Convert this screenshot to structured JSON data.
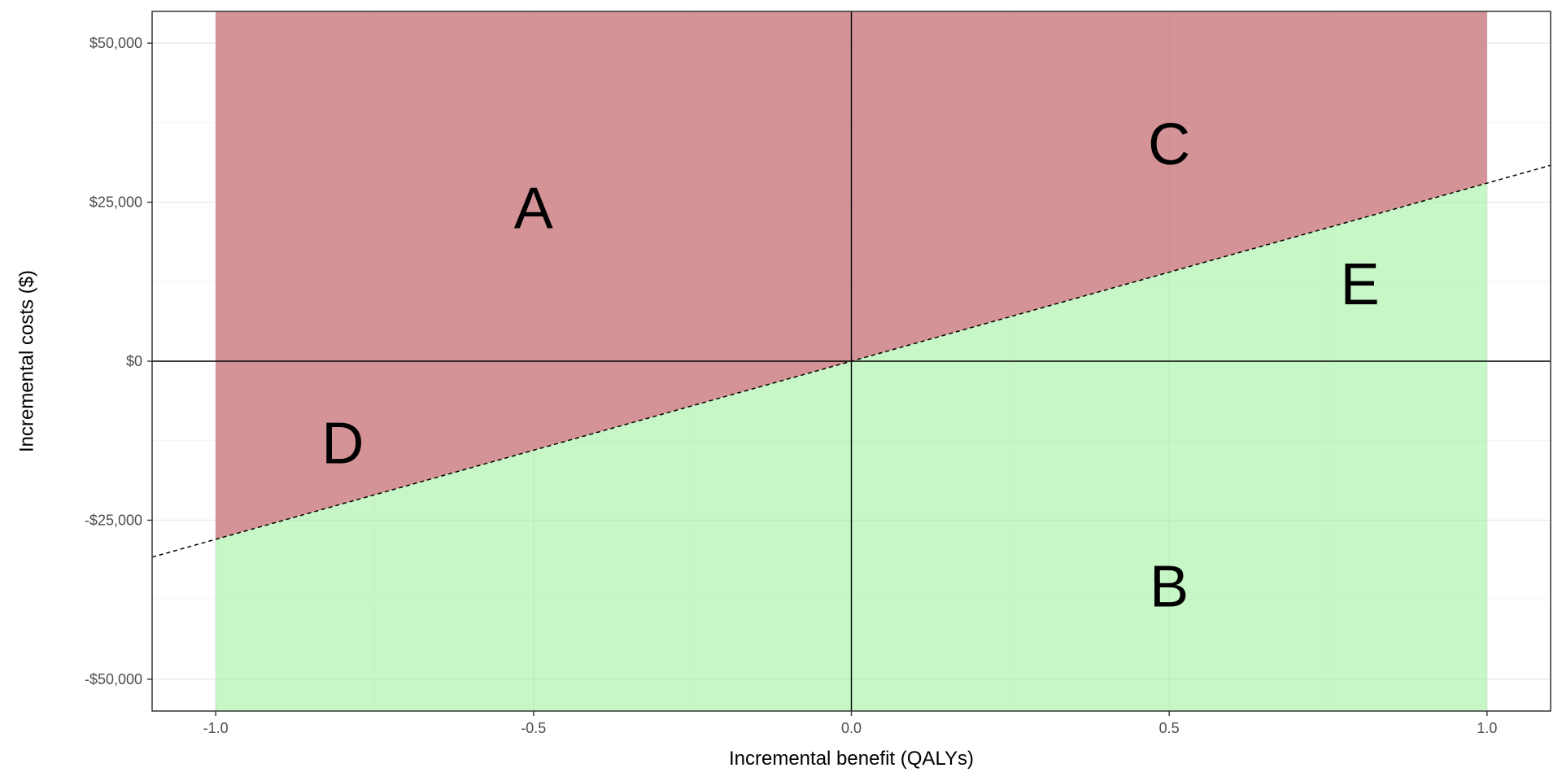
{
  "chart_data": {
    "type": "area",
    "title": "",
    "xlabel": "Incremental benefit (QALYs)",
    "ylabel": "Incremental costs ($)",
    "xlim": [
      -1.1,
      1.1
    ],
    "ylim": [
      -55000,
      55000
    ],
    "x_ticks": [
      -1.0,
      -0.5,
      0.0,
      0.5,
      1.0
    ],
    "x_tick_labels": [
      "-1.0",
      "-0.5",
      "0.0",
      "0.5",
      "1.0"
    ],
    "y_ticks": [
      -50000,
      -25000,
      0,
      25000,
      50000
    ],
    "y_tick_labels": [
      "-$50,000",
      "-$25,000",
      "$0",
      "$25,000",
      "$50,000"
    ],
    "threshold_line": {
      "slope": 28000,
      "intercept": 0,
      "style": "dashed"
    },
    "regions": [
      {
        "name": "not cost-effective",
        "color": "#c46a6e",
        "opacity": 0.72,
        "x_range": [
          -1.0,
          1.0
        ],
        "side": "above"
      },
      {
        "name": "cost-effective",
        "color": "#90ee90",
        "opacity": 0.5,
        "x_range": [
          -1.0,
          1.0
        ],
        "side": "below"
      }
    ],
    "annotations": [
      {
        "text": "A",
        "x": -0.5,
        "y": 24000
      },
      {
        "text": "C",
        "x": 0.5,
        "y": 34000
      },
      {
        "text": "E",
        "x": 0.8,
        "y": 12000
      },
      {
        "text": "D",
        "x": -0.8,
        "y": -13000
      },
      {
        "text": "B",
        "x": 0.5,
        "y": -35500
      }
    ],
    "reference_lines": {
      "x0": true,
      "y0": true
    },
    "grid": true,
    "legend": "none"
  }
}
